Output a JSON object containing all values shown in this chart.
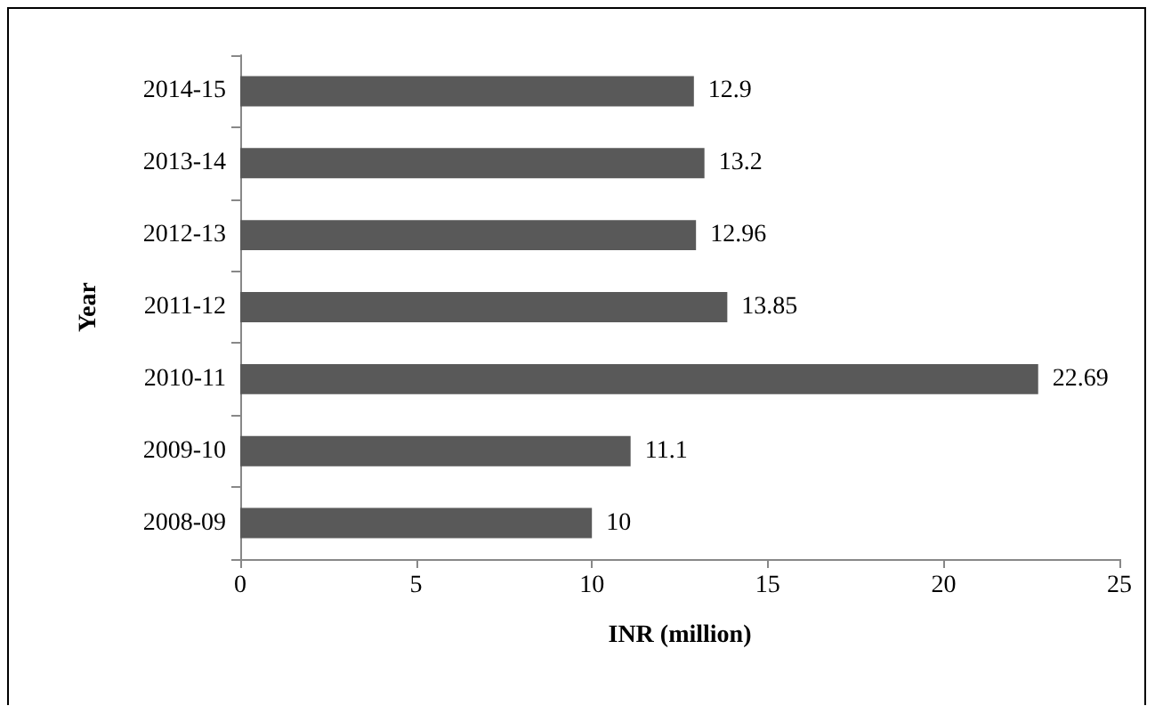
{
  "chart_data": {
    "type": "bar",
    "orientation": "horizontal",
    "xlabel": "INR (million)",
    "ylabel": "Year",
    "categories": [
      "2014-15",
      "2013-14",
      "2012-13",
      "2011-12",
      "2010-11",
      "2009-10",
      "2008-09"
    ],
    "values": [
      12.9,
      13.2,
      12.96,
      13.85,
      22.69,
      11.1,
      10
    ],
    "color": "#595959",
    "data_labels": true,
    "grid": false,
    "xlim": [
      0,
      25
    ],
    "xticks": [
      0,
      5,
      10,
      15,
      20,
      25
    ]
  }
}
